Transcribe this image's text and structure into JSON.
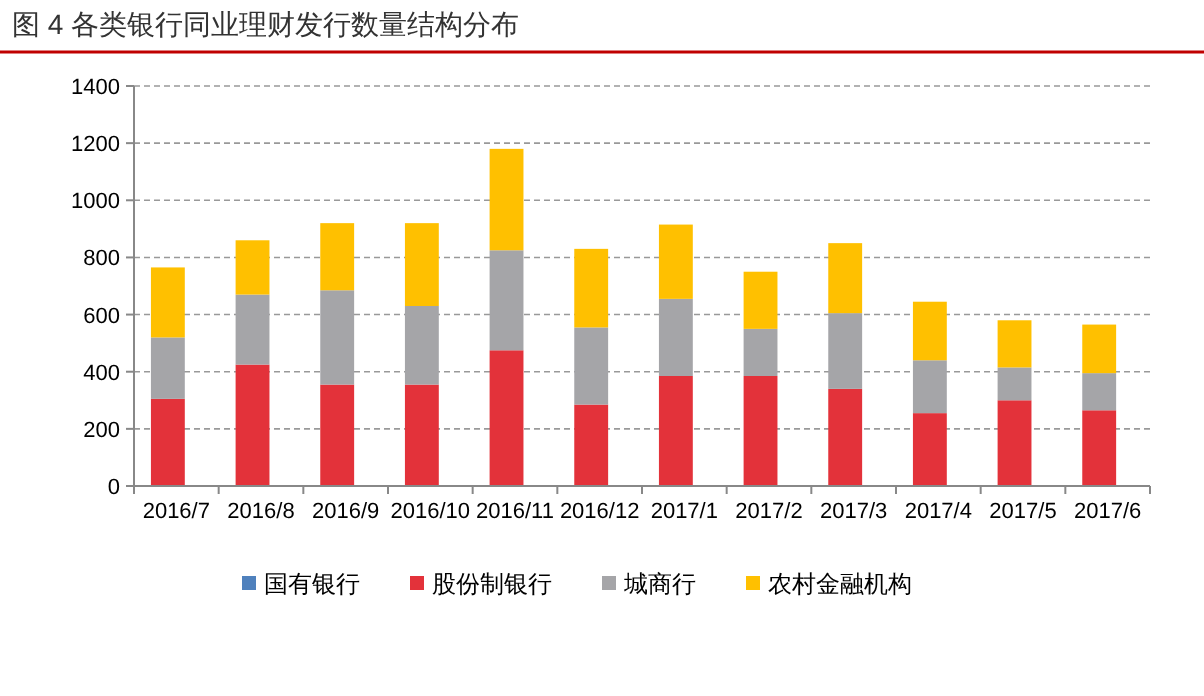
{
  "chart_data": {
    "type": "bar",
    "title": "图 4 各类银行同业理财发行数量结构分布",
    "stacked": true,
    "categories": [
      "2016/7",
      "2016/8",
      "2016/9",
      "2016/10",
      "2016/11",
      "2016/12",
      "2017/1",
      "2017/2",
      "2017/3",
      "2017/4",
      "2017/5",
      "2017/6"
    ],
    "series": [
      {
        "name": "国有银行",
        "color": "#4f81bd",
        "values": [
          0,
          0,
          0,
          0,
          0,
          0,
          0,
          0,
          0,
          0,
          0,
          0
        ]
      },
      {
        "name": "股份制银行",
        "color": "#e3323a",
        "values": [
          305,
          425,
          355,
          355,
          475,
          285,
          385,
          385,
          340,
          255,
          300,
          265
        ]
      },
      {
        "name": "城商行",
        "color": "#a5a5a8",
        "values": [
          215,
          245,
          330,
          275,
          350,
          270,
          270,
          165,
          265,
          185,
          115,
          130
        ]
      },
      {
        "name": "农村金融机构",
        "color": "#ffc000",
        "values": [
          245,
          190,
          235,
          290,
          355,
          275,
          260,
          200,
          245,
          205,
          165,
          170
        ]
      }
    ],
    "ylim": [
      0,
      1400
    ],
    "yticks": [
      0,
      200,
      400,
      600,
      800,
      1000,
      1200,
      1400
    ],
    "grid": "y",
    "legend": "bottom"
  }
}
